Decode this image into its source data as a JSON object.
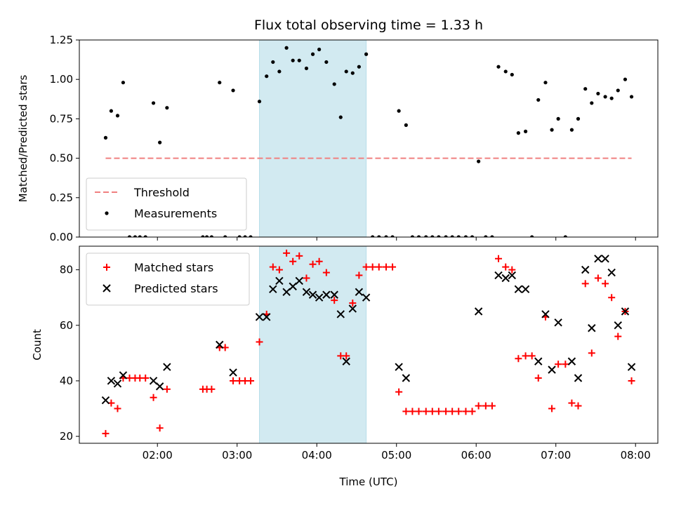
{
  "title": "Flux total observing time = 1.33 h",
  "chart_data": [
    {
      "type": "scatter",
      "panel": "top",
      "xlabel": "",
      "ylabel": "Matched/Predicted stars",
      "x_unit": "UTC hours",
      "xlim": [
        1.02,
        8.28
      ],
      "ylim": [
        0,
        1.25
      ],
      "yticks": [
        0,
        0.25,
        0.5,
        0.75,
        1.0,
        1.25
      ],
      "ytick_labels": [
        "0.00",
        "0.25",
        "0.50",
        "0.75",
        "1.00",
        "1.25"
      ],
      "threshold": {
        "name": "Threshold",
        "value": 0.5,
        "x_range": [
          1.35,
          7.95
        ],
        "color": "#f08080",
        "style": "dashed"
      },
      "shaded_interval": {
        "x": [
          3.28,
          4.62
        ],
        "color": "#add8e6"
      },
      "legend_position": "lower-left",
      "series": [
        {
          "name": "Measurements",
          "color": "#000000",
          "marker": "dot",
          "points": [
            [
              1.35,
              0.63
            ],
            [
              1.42,
              0.8
            ],
            [
              1.5,
              0.77
            ],
            [
              1.57,
              0.98
            ],
            [
              1.65,
              0.0
            ],
            [
              1.72,
              0.0
            ],
            [
              1.78,
              0.0
            ],
            [
              1.85,
              0.0
            ],
            [
              1.95,
              0.85
            ],
            [
              2.03,
              0.6
            ],
            [
              2.12,
              0.82
            ],
            [
              2.57,
              0.0
            ],
            [
              2.62,
              0.0
            ],
            [
              2.68,
              0.0
            ],
            [
              2.78,
              0.98
            ],
            [
              2.85,
              0.0
            ],
            [
              2.95,
              0.93
            ],
            [
              3.03,
              0.0
            ],
            [
              3.1,
              0.0
            ],
            [
              3.17,
              0.0
            ],
            [
              3.28,
              0.86
            ],
            [
              3.37,
              1.02
            ],
            [
              3.45,
              1.11
            ],
            [
              3.53,
              1.05
            ],
            [
              3.62,
              1.2
            ],
            [
              3.7,
              1.12
            ],
            [
              3.78,
              1.12
            ],
            [
              3.87,
              1.07
            ],
            [
              3.95,
              1.16
            ],
            [
              4.03,
              1.19
            ],
            [
              4.12,
              1.11
            ],
            [
              4.22,
              0.97
            ],
            [
              4.3,
              0.76
            ],
            [
              4.37,
              1.05
            ],
            [
              4.45,
              1.04
            ],
            [
              4.53,
              1.08
            ],
            [
              4.62,
              1.16
            ],
            [
              4.7,
              0.0
            ],
            [
              4.78,
              0.0
            ],
            [
              4.87,
              0.0
            ],
            [
              4.95,
              0.0
            ],
            [
              5.03,
              0.8
            ],
            [
              5.12,
              0.71
            ],
            [
              5.2,
              0.0
            ],
            [
              5.28,
              0.0
            ],
            [
              5.37,
              0.0
            ],
            [
              5.45,
              0.0
            ],
            [
              5.53,
              0.0
            ],
            [
              5.62,
              0.0
            ],
            [
              5.7,
              0.0
            ],
            [
              5.78,
              0.0
            ],
            [
              5.87,
              0.0
            ],
            [
              5.95,
              0.0
            ],
            [
              6.03,
              0.48
            ],
            [
              6.12,
              0.0
            ],
            [
              6.2,
              0.0
            ],
            [
              6.28,
              1.08
            ],
            [
              6.37,
              1.05
            ],
            [
              6.45,
              1.03
            ],
            [
              6.53,
              0.66
            ],
            [
              6.62,
              0.67
            ],
            [
              6.7,
              0.0
            ],
            [
              6.78,
              0.87
            ],
            [
              6.87,
              0.98
            ],
            [
              6.95,
              0.68
            ],
            [
              7.03,
              0.75
            ],
            [
              7.12,
              0.0
            ],
            [
              7.2,
              0.68
            ],
            [
              7.28,
              0.75
            ],
            [
              7.37,
              0.94
            ],
            [
              7.45,
              0.85
            ],
            [
              7.53,
              0.91
            ],
            [
              7.62,
              0.89
            ],
            [
              7.7,
              0.88
            ],
            [
              7.78,
              0.93
            ],
            [
              7.87,
              1.0
            ],
            [
              7.95,
              0.89
            ]
          ]
        }
      ]
    },
    {
      "type": "scatter",
      "panel": "bottom",
      "xlabel": "Time (UTC)",
      "ylabel": "Count",
      "x_unit": "UTC hours",
      "xlim": [
        1.02,
        8.28
      ],
      "ylim": [
        17.5,
        88.5
      ],
      "xticks": [
        2,
        3,
        4,
        5,
        6,
        7,
        8
      ],
      "xtick_labels": [
        "02:00",
        "03:00",
        "04:00",
        "05:00",
        "06:00",
        "07:00",
        "08:00"
      ],
      "yticks": [
        20,
        40,
        60,
        80
      ],
      "ytick_labels": [
        "20",
        "40",
        "60",
        "80"
      ],
      "shaded_interval": {
        "x": [
          3.28,
          4.62
        ],
        "color": "#add8e6"
      },
      "legend_position": "upper-left",
      "series": [
        {
          "name": "Matched stars",
          "color": "#ff0000",
          "marker": "plus",
          "points": [
            [
              1.35,
              21
            ],
            [
              1.42,
              32
            ],
            [
              1.5,
              30
            ],
            [
              1.57,
              41
            ],
            [
              1.65,
              41
            ],
            [
              1.72,
              41
            ],
            [
              1.78,
              41
            ],
            [
              1.85,
              41
            ],
            [
              1.95,
              34
            ],
            [
              2.03,
              23
            ],
            [
              2.12,
              37
            ],
            [
              2.57,
              37
            ],
            [
              2.62,
              37
            ],
            [
              2.68,
              37
            ],
            [
              2.78,
              52
            ],
            [
              2.85,
              52
            ],
            [
              2.95,
              40
            ],
            [
              3.03,
              40
            ],
            [
              3.1,
              40
            ],
            [
              3.17,
              40
            ],
            [
              3.28,
              54
            ],
            [
              3.37,
              64
            ],
            [
              3.45,
              81
            ],
            [
              3.53,
              80
            ],
            [
              3.62,
              86
            ],
            [
              3.7,
              83
            ],
            [
              3.78,
              85
            ],
            [
              3.87,
              77
            ],
            [
              3.95,
              82
            ],
            [
              4.03,
              83
            ],
            [
              4.12,
              79
            ],
            [
              4.22,
              69
            ],
            [
              4.3,
              49
            ],
            [
              4.37,
              49
            ],
            [
              4.45,
              68
            ],
            [
              4.53,
              78
            ],
            [
              4.62,
              81
            ],
            [
              4.7,
              81
            ],
            [
              4.78,
              81
            ],
            [
              4.87,
              81
            ],
            [
              4.95,
              81
            ],
            [
              5.03,
              36
            ],
            [
              5.12,
              29
            ],
            [
              5.2,
              29
            ],
            [
              5.28,
              29
            ],
            [
              5.37,
              29
            ],
            [
              5.45,
              29
            ],
            [
              5.53,
              29
            ],
            [
              5.62,
              29
            ],
            [
              5.7,
              29
            ],
            [
              5.78,
              29
            ],
            [
              5.87,
              29
            ],
            [
              5.95,
              29
            ],
            [
              6.03,
              31
            ],
            [
              6.12,
              31
            ],
            [
              6.2,
              31
            ],
            [
              6.28,
              84
            ],
            [
              6.37,
              81
            ],
            [
              6.45,
              80
            ],
            [
              6.53,
              48
            ],
            [
              6.62,
              49
            ],
            [
              6.7,
              49
            ],
            [
              6.78,
              41
            ],
            [
              6.87,
              63
            ],
            [
              6.95,
              30
            ],
            [
              7.03,
              46
            ],
            [
              7.12,
              46
            ],
            [
              7.2,
              32
            ],
            [
              7.28,
              31
            ],
            [
              7.37,
              75
            ],
            [
              7.45,
              50
            ],
            [
              7.53,
              77
            ],
            [
              7.62,
              75
            ],
            [
              7.7,
              70
            ],
            [
              7.78,
              56
            ],
            [
              7.87,
              65
            ],
            [
              7.95,
              40
            ]
          ]
        },
        {
          "name": "Predicted stars",
          "color": "#000000",
          "marker": "x",
          "points": [
            [
              1.35,
              33
            ],
            [
              1.42,
              40
            ],
            [
              1.5,
              39
            ],
            [
              1.57,
              42
            ],
            [
              1.95,
              40
            ],
            [
              2.03,
              38
            ],
            [
              2.12,
              45
            ],
            [
              2.78,
              53
            ],
            [
              2.95,
              43
            ],
            [
              3.28,
              63
            ],
            [
              3.37,
              63
            ],
            [
              3.45,
              73
            ],
            [
              3.53,
              76
            ],
            [
              3.62,
              72
            ],
            [
              3.7,
              74
            ],
            [
              3.78,
              76
            ],
            [
              3.87,
              72
            ],
            [
              3.95,
              71
            ],
            [
              4.03,
              70
            ],
            [
              4.12,
              71
            ],
            [
              4.22,
              71
            ],
            [
              4.3,
              64
            ],
            [
              4.37,
              47
            ],
            [
              4.45,
              66
            ],
            [
              4.53,
              72
            ],
            [
              4.62,
              70
            ],
            [
              5.03,
              45
            ],
            [
              5.12,
              41
            ],
            [
              6.03,
              65
            ],
            [
              6.28,
              78
            ],
            [
              6.37,
              77
            ],
            [
              6.45,
              78
            ],
            [
              6.53,
              73
            ],
            [
              6.62,
              73
            ],
            [
              6.78,
              47
            ],
            [
              6.87,
              64
            ],
            [
              6.95,
              44
            ],
            [
              7.03,
              61
            ],
            [
              7.2,
              47
            ],
            [
              7.28,
              41
            ],
            [
              7.37,
              80
            ],
            [
              7.45,
              59
            ],
            [
              7.53,
              84
            ],
            [
              7.62,
              84
            ],
            [
              7.7,
              79
            ],
            [
              7.78,
              60
            ],
            [
              7.87,
              65
            ],
            [
              7.95,
              45
            ]
          ]
        }
      ]
    }
  ]
}
